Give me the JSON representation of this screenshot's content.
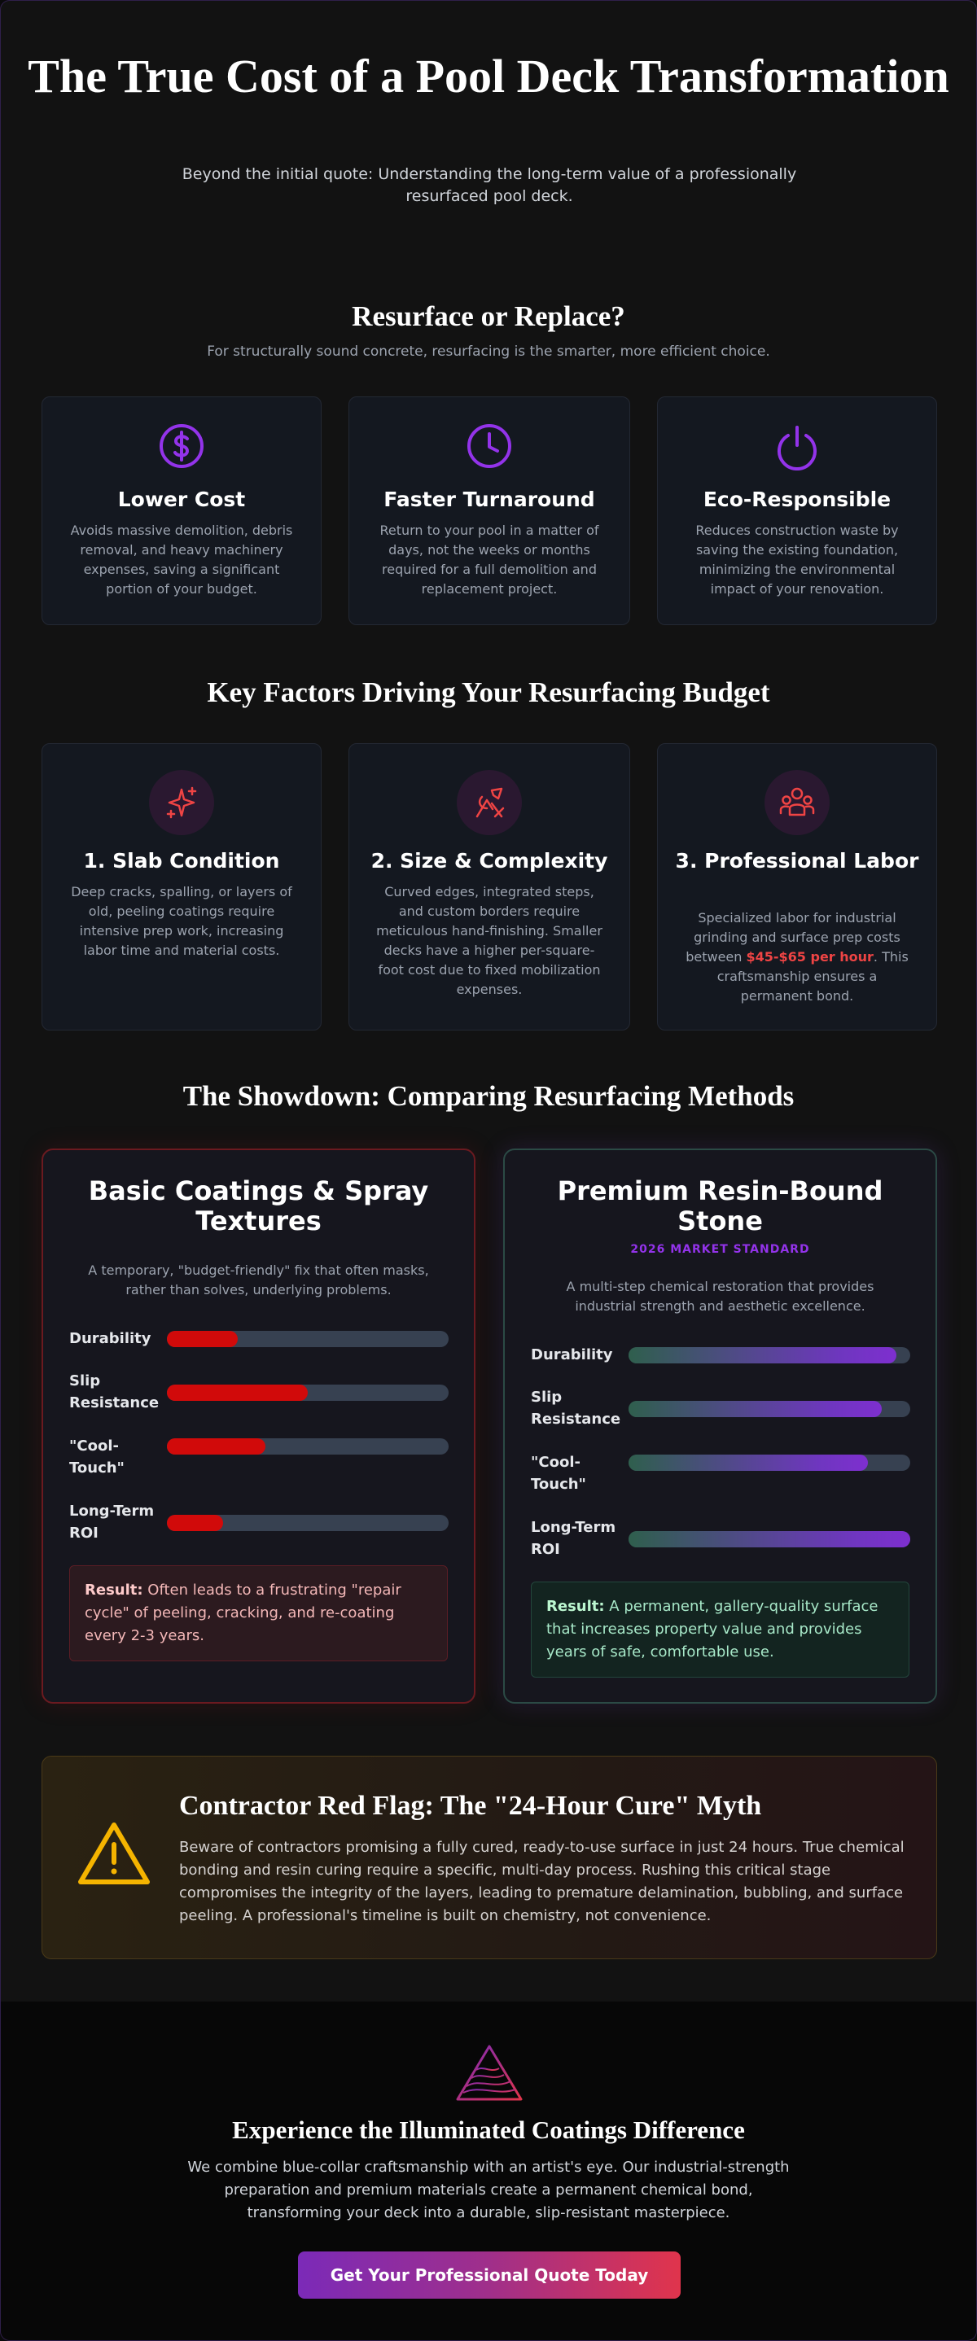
{
  "hero": {
    "title": "The True Cost of a Pool Deck Transformation",
    "subtitle": "Beyond the initial quote: Understanding the long-term value of a professionally resurfaced pool deck."
  },
  "resurface": {
    "title": "Resurface or Replace?",
    "subtitle": "For structurally sound concrete, resurfacing is the smarter, more efficient choice.",
    "cards": [
      {
        "icon": "dollar-icon",
        "title": "Lower Cost",
        "text": "Avoids massive demolition, debris removal, and heavy machinery expenses, saving a significant portion of your budget."
      },
      {
        "icon": "clock-icon",
        "title": "Faster Turnaround",
        "text": "Return to your pool in a matter of days, not the weeks or months required for a full demolition and replacement project."
      },
      {
        "icon": "power-icon",
        "title": "Eco-Responsible",
        "text": "Reduces construction waste by saving the existing foundation, minimizing the environmental impact of your renovation."
      }
    ]
  },
  "factors": {
    "title": "Key Factors Driving Your Resurfacing Budget",
    "cards": [
      {
        "icon": "sparkle-icon",
        "title": "1. Slab Condition",
        "text": "Deep cracks, spalling, or layers of old, peeling coatings require intensive prep work, increasing labor time and material costs."
      },
      {
        "icon": "shapes-icon",
        "title": "2. Size & Complexity",
        "text": "Curved edges, integrated steps, and custom borders require meticulous hand-finishing. Smaller decks have a higher per-square-foot cost due to fixed mobilization expenses."
      },
      {
        "icon": "team-icon",
        "title": "3. Professional Labor",
        "text_before": "Specialized labor for industrial grinding and surface prep costs between ",
        "highlight": "$45-$65 per hour",
        "text_after": ". This craftsmanship ensures a permanent bond."
      }
    ]
  },
  "showdown": {
    "title": "The Showdown: Comparing Resurfacing Methods",
    "basic": {
      "title": "Basic Coatings & Spray Textures",
      "desc": "A temporary, \"budget-friendly\" fix that often masks, rather than solves, underlying problems.",
      "metrics": [
        {
          "label": "Durability",
          "value": 0.25
        },
        {
          "label": "Slip Resistance",
          "value": 0.5
        },
        {
          "label": "\"Cool-Touch\"",
          "value": 0.35
        },
        {
          "label": "Long-Term ROI",
          "value": 0.2
        }
      ],
      "result_label": "Result:",
      "result_text": " Often leads to a frustrating \"repair cycle\" of peeling, cracking, and re-coating every 2-3 years."
    },
    "premium": {
      "title": "Premium Resin-Bound Stone",
      "tag": "2026 MARKET STANDARD",
      "desc": "A multi-step chemical restoration that provides industrial strength and aesthetic excellence.",
      "metrics": [
        {
          "label": "Durability",
          "value": 0.95
        },
        {
          "label": "Slip Resistance",
          "value": 0.9
        },
        {
          "label": "\"Cool-Touch\"",
          "value": 0.85
        },
        {
          "label": "Long-Term ROI",
          "value": 1.0
        }
      ],
      "result_label": "Result:",
      "result_text": " A permanent, gallery-quality surface that increases property value and provides years of safe, comfortable use."
    }
  },
  "redflag": {
    "icon": "warning-icon",
    "title": "Contractor Red Flag: The \"24-Hour Cure\" Myth",
    "text": "Beware of contractors promising a fully cured, ready-to-use surface in just 24 hours. True chemical bonding and resin curing require a specific, multi-day process. Rushing this critical stage compromises the integrity of the layers, leading to premature delamination, bubbling, and surface peeling. A professional's timeline is built on chemistry, not convenience."
  },
  "footer": {
    "logo": "pyramid-logo-icon",
    "title": "Experience the Illuminated Coatings Difference",
    "text": "We combine blue-collar craftsmanship with an artist's eye. Our industrial-strength preparation and premium materials create a permanent chemical bond, transforming your deck into a durable, slip-resistant masterpiece.",
    "cta": "Get Your Professional Quote Today"
  },
  "colors": {
    "purple": "#9333ea",
    "red": "#ef4444",
    "amber": "#f5b400",
    "bad_fill": "#d10a0a"
  }
}
